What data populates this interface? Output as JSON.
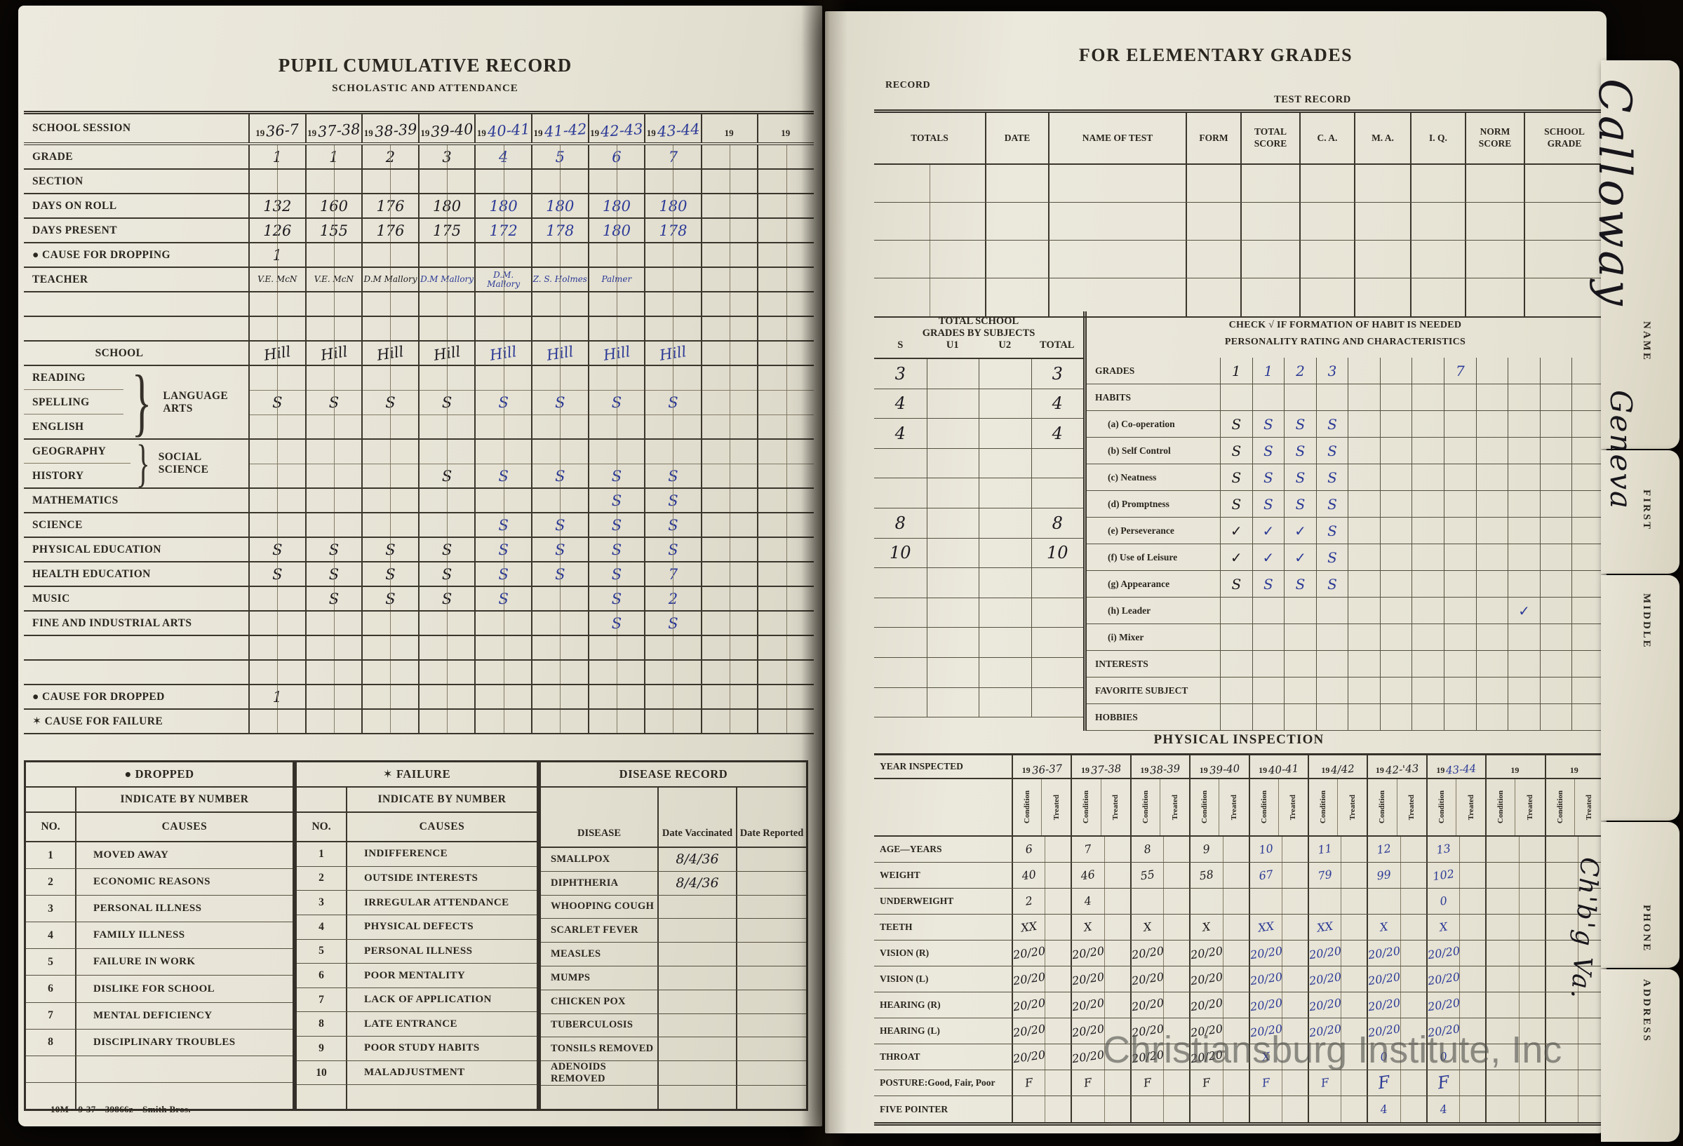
{
  "watermark": "Christiansburg Institute, Inc",
  "tabs": {
    "name_label": "NAME",
    "first_label": "FIRST",
    "middle_label": "MIDDLE",
    "phone_label": "PHONE",
    "address_label": "ADDRESS",
    "name_value": "Calloway",
    "first_value": "Geneva",
    "address_value": "Ch'b'g Va."
  },
  "left": {
    "title": "PUPIL CUMULATIVE RECORD",
    "subtitle": "SCHOLASTIC AND ATTENDANCE",
    "session_label": "SCHOOL SESSION",
    "years": [
      {
        "p": "19",
        "h": "36-7"
      },
      {
        "p": "19",
        "h": "37-38"
      },
      {
        "p": "19",
        "h": "38-39"
      },
      {
        "p": "19",
        "h": "39-40"
      },
      {
        "p": "19",
        "h": "40-41"
      },
      {
        "p": "19",
        "h": "41-42"
      },
      {
        "p": "19",
        "h": "42-43"
      },
      {
        "p": "19",
        "h": "43-44"
      },
      {
        "p": "19",
        "h": ""
      },
      {
        "p": "19",
        "h": ""
      }
    ],
    "attendance": {
      "grade": {
        "label": "GRADE",
        "values": [
          "1",
          "1",
          "2",
          "3",
          "4",
          "5",
          "6",
          "7",
          "",
          ""
        ]
      },
      "section": {
        "label": "SECTION",
        "values": [
          "",
          "",
          "",
          "",
          "",
          "",
          "",
          "",
          "",
          ""
        ]
      },
      "days_on_roll": {
        "label": "DAYS ON ROLL",
        "values": [
          "132",
          "160",
          "176",
          "180",
          "180",
          "180",
          "180",
          "180",
          "",
          ""
        ]
      },
      "days_present": {
        "label": "DAYS PRESENT",
        "values": [
          "126",
          "155",
          "176",
          "175",
          "172",
          "178",
          "180",
          "178",
          "",
          ""
        ]
      },
      "cause_for_dropping": {
        "label": "● CAUSE FOR DROPPING",
        "values": [
          "1",
          "",
          "",
          "",
          "",
          "",
          "",
          "",
          "",
          ""
        ]
      },
      "teacher": {
        "label": "TEACHER",
        "values": [
          "V.E. McN",
          "V.E. McN",
          "D.M Mallory",
          "D.M Mallory",
          "D.M. Mallory",
          "Z. S. Holmes",
          "Palmer",
          "",
          "",
          ""
        ]
      }
    },
    "subjects": {
      "school": {
        "label": "SCHOOL",
        "values": [
          "Hill",
          "Hill",
          "Hill",
          "Hill",
          "Hill",
          "Hill",
          "Hill",
          "Hill",
          "",
          ""
        ]
      },
      "language_arts": {
        "parts": [
          "READING",
          "SPELLING",
          "ENGLISH"
        ],
        "label": "LANGUAGE ARTS",
        "values": [
          "S",
          "S",
          "S",
          "S",
          "S",
          "S",
          "S",
          "S",
          "",
          ""
        ]
      },
      "social_science": {
        "parts": [
          "GEOGRAPHY",
          "HISTORY"
        ],
        "label": "SOCIAL SCIENCE",
        "values": [
          "",
          "",
          "",
          "S",
          "S",
          "S",
          "S",
          "S",
          "",
          ""
        ]
      },
      "mathematics": {
        "label": "MATHEMATICS",
        "values": [
          "",
          "",
          "",
          "",
          "",
          "",
          "S",
          "S",
          "",
          ""
        ]
      },
      "science": {
        "label": "SCIENCE",
        "values": [
          "",
          "",
          "",
          "",
          "S",
          "S",
          "S",
          "S",
          "",
          ""
        ]
      },
      "physical_education": {
        "label": "PHYSICAL EDUCATION",
        "values": [
          "S",
          "S",
          "S",
          "S",
          "S",
          "S",
          "S",
          "S",
          "",
          ""
        ]
      },
      "health_education": {
        "label": "HEALTH EDUCATION",
        "values": [
          "S",
          "S",
          "S",
          "S",
          "S",
          "S",
          "S",
          "7",
          "",
          ""
        ]
      },
      "music": {
        "label": "MUSIC",
        "values": [
          "",
          "S",
          "S",
          "S",
          "S",
          "",
          "S",
          "2",
          "",
          ""
        ]
      },
      "fine_industrial_arts": {
        "label": "FINE AND INDUSTRIAL ARTS",
        "values": [
          "",
          "",
          "",
          "",
          "",
          "",
          "S",
          "S",
          "",
          ""
        ]
      },
      "cause_for_dropped": {
        "label": "● CAUSE FOR DROPPED",
        "values": [
          "1",
          "",
          "",
          "",
          "",
          "",
          "",
          "",
          "",
          ""
        ]
      },
      "cause_for_failure": {
        "label": "✶ CAUSE FOR FAILURE",
        "values": [
          "",
          "",
          "",
          "",
          "",
          "",
          "",
          "",
          "",
          ""
        ]
      }
    },
    "dropped_table": {
      "title": "● DROPPED",
      "indicate": "INDICATE BY NUMBER",
      "no_label": "NO.",
      "causes_label": "CAUSES",
      "rows": [
        {
          "no": "1",
          "cause": "MOVED AWAY"
        },
        {
          "no": "2",
          "cause": "ECONOMIC REASONS"
        },
        {
          "no": "3",
          "cause": "PERSONAL ILLNESS"
        },
        {
          "no": "4",
          "cause": "FAMILY ILLNESS"
        },
        {
          "no": "5",
          "cause": "FAILURE IN WORK"
        },
        {
          "no": "6",
          "cause": "DISLIKE FOR SCHOOL"
        },
        {
          "no": "7",
          "cause": "MENTAL DEFICIENCY"
        },
        {
          "no": "8",
          "cause": "DISCIPLINARY TROUBLES"
        },
        {
          "no": "",
          "cause": ""
        },
        {
          "no": "",
          "cause": ""
        }
      ]
    },
    "failure_table": {
      "title": "✶ FAILURE",
      "indicate": "INDICATE BY NUMBER",
      "no_label": "NO.",
      "causes_label": "CAUSES",
      "rows": [
        {
          "no": "1",
          "cause": "INDIFFERENCE"
        },
        {
          "no": "2",
          "cause": "OUTSIDE INTERESTS"
        },
        {
          "no": "3",
          "cause": "IRREGULAR ATTENDANCE"
        },
        {
          "no": "4",
          "cause": "PHYSICAL DEFECTS"
        },
        {
          "no": "5",
          "cause": "PERSONAL ILLNESS"
        },
        {
          "no": "6",
          "cause": "POOR MENTALITY"
        },
        {
          "no": "7",
          "cause": "LACK OF APPLICATION"
        },
        {
          "no": "8",
          "cause": "LATE ENTRANCE"
        },
        {
          "no": "9",
          "cause": "POOR STUDY HABITS"
        },
        {
          "no": "10",
          "cause": "MALADJUSTMENT"
        },
        {
          "no": "",
          "cause": ""
        }
      ]
    },
    "disease_table": {
      "title": "DISEASE RECORD",
      "disease_label": "DISEASE",
      "vaccinated_label": "Date Vaccinated",
      "reported_label": "Date Reported",
      "rows": [
        {
          "disease": "SMALLPOX",
          "vaccinated": "8/4/36",
          "reported": ""
        },
        {
          "disease": "DIPHTHERIA",
          "vaccinated": "8/4/36",
          "reported": ""
        },
        {
          "disease": "WHOOPING COUGH",
          "vaccinated": "",
          "reported": ""
        },
        {
          "disease": "SCARLET FEVER",
          "vaccinated": "",
          "reported": ""
        },
        {
          "disease": "MEASLES",
          "vaccinated": "",
          "reported": ""
        },
        {
          "disease": "MUMPS",
          "vaccinated": "",
          "reported": ""
        },
        {
          "disease": "CHICKEN POX",
          "vaccinated": "",
          "reported": ""
        },
        {
          "disease": "TUBERCULOSIS",
          "vaccinated": "",
          "reported": ""
        },
        {
          "disease": "TONSILS REMOVED",
          "vaccinated": "",
          "reported": ""
        },
        {
          "disease": "ADENOIDS REMOVED",
          "vaccinated": "",
          "reported": ""
        },
        {
          "disease": "",
          "vaccinated": "",
          "reported": ""
        }
      ]
    },
    "print_code": "10M—9-37—39866z—Smith Bros."
  },
  "right": {
    "title": "FOR ELEMENTARY GRADES",
    "record_label": "RECORD",
    "test_record_label": "TEST RECORD",
    "test_table": {
      "headers": {
        "totals": "TOTALS",
        "date": "DATE",
        "name_of_test": "NAME OF TEST",
        "form": "FORM",
        "total_score": "TOTAL SCORE",
        "ca": "C. A.",
        "ma": "M. A.",
        "iq": "I. Q.",
        "norm_score": "NORM SCORE",
        "school_grade": "SCHOOL GRADE"
      }
    },
    "grades_by_subjects": {
      "title1": "TOTAL SCHOOL",
      "title2": "GRADES BY SUBJECTS",
      "cols": [
        "S",
        "U1",
        "U2",
        "TOTAL"
      ],
      "rows": [
        [
          "3",
          "",
          "",
          "3"
        ],
        [
          "4",
          "",
          "",
          "4"
        ],
        [
          "4",
          "",
          "",
          "4"
        ],
        [
          "",
          "",
          "",
          ""
        ],
        [
          "",
          "",
          "",
          ""
        ],
        [
          "8",
          "",
          "",
          "8"
        ],
        [
          "10",
          "",
          "",
          "10"
        ],
        [
          "",
          "",
          "",
          ""
        ],
        [
          "",
          "",
          "",
          ""
        ],
        [
          "",
          "",
          "",
          ""
        ],
        [
          "",
          "",
          "",
          ""
        ],
        [
          "",
          "",
          "",
          ""
        ]
      ]
    },
    "personality": {
      "header1": "CHECK √ IF FORMATION OF HABIT IS NEEDED",
      "header2": "PERSONALITY RATING AND CHARACTERISTICS",
      "rows": [
        {
          "label": "GRADES",
          "values": [
            "1",
            "1",
            "2",
            "3",
            "",
            "",
            "",
            "7",
            "",
            "",
            "",
            ""
          ]
        },
        {
          "label": "HABITS",
          "values": [
            "",
            "",
            "",
            "",
            "",
            "",
            "",
            "",
            "",
            "",
            "",
            ""
          ]
        },
        {
          "label": "(a) Co-operation",
          "values": [
            "S",
            "S",
            "S",
            "S",
            "",
            "",
            "",
            "",
            "",
            "",
            "",
            ""
          ]
        },
        {
          "label": "(b) Self Control",
          "values": [
            "S",
            "S",
            "S",
            "S",
            "",
            "",
            "",
            "",
            "",
            "",
            "",
            ""
          ]
        },
        {
          "label": "(c) Neatness",
          "values": [
            "S",
            "S",
            "S",
            "S",
            "",
            "",
            "",
            "",
            "",
            "",
            "",
            ""
          ]
        },
        {
          "label": "(d) Promptness",
          "values": [
            "S",
            "S",
            "S",
            "S",
            "",
            "",
            "",
            "",
            "",
            "",
            "",
            ""
          ]
        },
        {
          "label": "(e) Perseverance",
          "values": [
            "✓",
            "✓",
            "✓",
            "S",
            "",
            "",
            "",
            "",
            "",
            "",
            "",
            ""
          ]
        },
        {
          "label": "(f) Use of Leisure",
          "values": [
            "✓",
            "✓",
            "✓",
            "S",
            "",
            "",
            "",
            "",
            "",
            "",
            "",
            ""
          ]
        },
        {
          "label": "(g) Appearance",
          "values": [
            "S",
            "S",
            "S",
            "S",
            "",
            "",
            "",
            "",
            "",
            "",
            "",
            ""
          ]
        },
        {
          "label": "(h) Leader",
          "values": [
            "",
            "",
            "",
            "",
            "",
            "",
            "",
            "",
            "",
            "✓",
            "",
            ""
          ]
        },
        {
          "label": "(i) Mixer",
          "values": [
            "",
            "",
            "",
            "",
            "",
            "",
            "",
            "",
            "",
            "",
            "",
            ""
          ]
        },
        {
          "label": "INTERESTS",
          "values": [
            "",
            "",
            "",
            "",
            "",
            "",
            "",
            "",
            "",
            "",
            "",
            ""
          ]
        },
        {
          "label": "FAVORITE SUBJECT",
          "values": [
            "",
            "",
            "",
            "",
            "",
            "",
            "",
            "",
            "",
            "",
            "",
            ""
          ]
        },
        {
          "label": "HOBBIES",
          "values": [
            "",
            "",
            "",
            "",
            "",
            "",
            "",
            "",
            "",
            "",
            "",
            ""
          ]
        }
      ]
    },
    "physical": {
      "title": "PHYSICAL INSPECTION",
      "year_label": "YEAR INSPECTED",
      "years": [
        {
          "p": "19",
          "h": "36-37"
        },
        {
          "p": "19",
          "h": "37-38"
        },
        {
          "p": "19",
          "h": "38-39"
        },
        {
          "p": "19",
          "h": "39-40"
        },
        {
          "p": "19",
          "h": "40-41"
        },
        {
          "p": "19",
          "h": "4/42"
        },
        {
          "p": "19",
          "h": "42-'43"
        },
        {
          "p": "19",
          "h": "43-44"
        },
        {
          "p": "19",
          "h": ""
        },
        {
          "p": "19",
          "h": ""
        }
      ],
      "subheads": [
        "Condition",
        "Treated"
      ],
      "rows": [
        {
          "label": "AGE—YEARS",
          "values": [
            "6",
            "7",
            "8",
            "9",
            "10",
            "11",
            "12",
            "13",
            "",
            ""
          ]
        },
        {
          "label": "WEIGHT",
          "values": [
            "40",
            "46",
            "55",
            "58",
            "67",
            "79",
            "99",
            "102",
            "",
            ""
          ]
        },
        {
          "label": "UNDERWEIGHT",
          "values": [
            "2",
            "4",
            "",
            "",
            "",
            "",
            "",
            "0",
            "",
            ""
          ]
        },
        {
          "label": "TEETH",
          "values": [
            "XX",
            "X",
            "X",
            "X",
            "XX",
            "XX",
            "X",
            "X",
            "",
            ""
          ]
        },
        {
          "label": "VISION (R)",
          "values": [
            "20/20",
            "20/20",
            "20/20",
            "20/20",
            "20/20",
            "20/20",
            "20/20",
            "20/20",
            "",
            ""
          ]
        },
        {
          "label": "VISION (L)",
          "values": [
            "20/20",
            "20/20",
            "20/20",
            "20/20",
            "20/20",
            "20/20",
            "20/20",
            "20/20",
            "",
            ""
          ]
        },
        {
          "label": "HEARING (R)",
          "values": [
            "20/20",
            "20/20",
            "20/20",
            "20/20",
            "20/20",
            "20/20",
            "20/20",
            "20/20",
            "",
            ""
          ]
        },
        {
          "label": "HEARING (L)",
          "values": [
            "20/20",
            "20/20",
            "20/20",
            "20/20",
            "20/20",
            "20/20",
            "20/20",
            "20/20",
            "",
            ""
          ]
        },
        {
          "label": "THROAT",
          "values": [
            "20/20",
            "20/20",
            "20/20",
            "20/20",
            "X",
            "",
            "0",
            "0",
            "",
            ""
          ]
        },
        {
          "label": "POSTURE:Good, Fair, Poor",
          "values": [
            "F",
            "F",
            "F",
            "F",
            "F",
            "F",
            "F",
            "F",
            "",
            ""
          ]
        },
        {
          "label": "FIVE POINTER",
          "values": [
            "",
            "",
            "",
            "",
            "",
            "",
            "4",
            "4",
            "",
            ""
          ]
        }
      ]
    }
  }
}
